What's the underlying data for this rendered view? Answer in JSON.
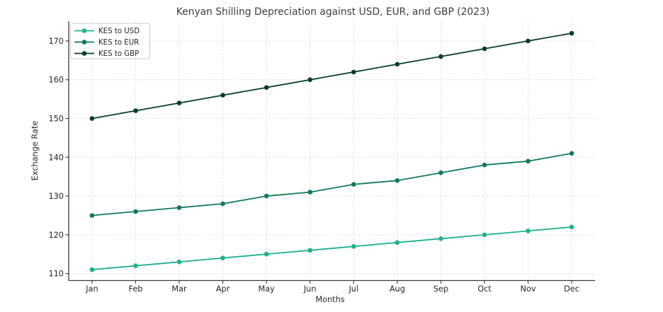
{
  "figure": {
    "background": "#ffffff"
  },
  "chart_data": {
    "type": "line",
    "title": "Kenyan Shilling Depreciation against USD, EUR, and GBP (2023)",
    "xlabel": "Months",
    "ylabel": "Exchange Rate",
    "categories": [
      "Jan",
      "Feb",
      "Mar",
      "Apr",
      "May",
      "Jun",
      "Jul",
      "Aug",
      "Sep",
      "Oct",
      "Nov",
      "Dec"
    ],
    "yticks": [
      110,
      120,
      130,
      140,
      150,
      160,
      170
    ],
    "ylim": [
      108.2,
      175.1
    ],
    "grid": true,
    "grid_style": "dotted",
    "grid_color": "#d4d4d4",
    "legend_position": "upper left",
    "marker": "circle",
    "series": [
      {
        "name": "KES to USD",
        "color": "#1fb08c",
        "values": [
          111,
          112,
          113,
          114,
          115,
          116,
          117,
          118,
          119,
          120,
          121,
          122
        ]
      },
      {
        "name": "KES to EUR",
        "color": "#127a5e",
        "values": [
          125,
          126,
          127,
          128,
          130,
          131,
          133,
          134,
          136,
          138,
          139,
          141
        ]
      },
      {
        "name": "KES to GBP",
        "color": "#0a3d2e",
        "values": [
          150,
          152,
          154,
          156,
          158,
          160,
          162,
          164,
          166,
          168,
          170,
          172
        ]
      }
    ]
  }
}
